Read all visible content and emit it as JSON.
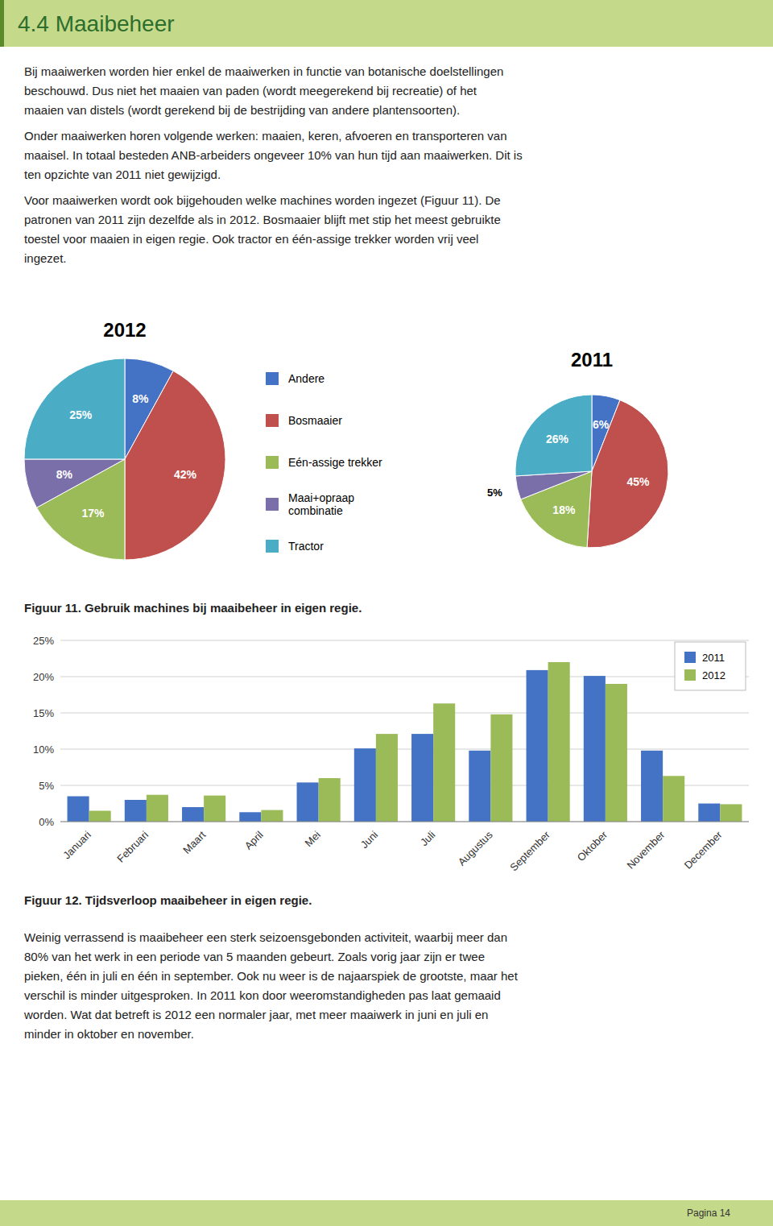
{
  "page": {
    "title": "4.4 Maaibeheer",
    "body_paragraphs": [
      [
        "Bij maaiwerken worden hier enkel de maaiwerken in functie van botanische doelstellingen",
        "beschouwd. Dus niet het maaien van paden (wordt meegerekend bij recreatie) of het",
        "maaien van distels (wordt gerekend bij de bestrijding van andere plantensoorten)."
      ],
      [
        "Onder maaiwerken horen volgende werken: maaien, keren, afvoeren en transporteren van",
        "maaisel. In totaal besteden ANB-arbeiders ongeveer 10% van hun tijd aan maaiwerken. Dit is",
        "ten opzichte van 2011 niet gewijzigd."
      ],
      [
        "Voor maaiwerken wordt ook bijgehouden welke machines worden ingezet (Figuur 11). De",
        "patronen van 2011 zijn dezelfde als in 2012. Bosmaaier blijft met stip het meest gebruikte",
        "toestel voor maaien in eigen regie. Ook tractor en één-assige trekker worden vrij veel",
        "ingezet."
      ]
    ],
    "bottom_text": [
      "Weinig verrassend is maaibeheer een sterk seizoensgebonden activiteit, waarbij meer dan",
      "80% van het werk in een periode van 5 maanden gebeurt. Zoals vorig jaar zijn er twee",
      "pieken, één in juli en één in september. Ook nu weer is de najaarspiek de grootste, maar het",
      "verschil is minder uitgesproken. In 2011 kon door weeromstandigheden pas laat gemaaid",
      "worden. Wat dat betreft is 2012 een normaler jaar, met meer maaiwerk in juni en juli en",
      "minder in oktober en november."
    ],
    "page_number": "Pagina 14"
  },
  "chart_data": [
    {
      "type": "pie",
      "title": "Figuur 11. Gebruik machines bij maaibeheer in eigen regie.",
      "categories": [
        "Andere",
        "Bosmaaier",
        "Eén-assige trekker",
        "Maai+opraap\ncombinatie",
        "Tractor"
      ],
      "colors": [
        "#4472c4",
        "#c0504d",
        "#9bbb59",
        "#7b6faa",
        "#4bacc6"
      ],
      "series": [
        {
          "name": "2012",
          "values": [
            8,
            42,
            17,
            8,
            25
          ],
          "value_labels": [
            "8%",
            "42%",
            "17%",
            "8%",
            "25%"
          ]
        },
        {
          "name": "2011",
          "values": [
            6,
            45,
            18,
            5,
            26
          ],
          "value_labels": [
            "6%",
            "45%",
            "18%",
            "5%",
            "26%"
          ]
        }
      ],
      "data_labels": true,
      "legend": "center"
    },
    {
      "type": "bar",
      "title": "Figuur 12. Tijdsverloop maaibeheer in eigen regie.",
      "categories": [
        "Januari",
        "Februari",
        "Maart",
        "April",
        "Mei",
        "Juni",
        "Juli",
        "Augustus",
        "September",
        "Oktober",
        "November",
        "December"
      ],
      "series": [
        {
          "name": "2011",
          "color": "#4472c4",
          "values": [
            3.5,
            3.0,
            2.0,
            1.3,
            5.4,
            10.1,
            12.1,
            9.8,
            20.9,
            20.1,
            9.8,
            2.5
          ]
        },
        {
          "name": "2012",
          "color": "#9bbb59",
          "values": [
            1.5,
            3.7,
            3.6,
            1.6,
            6.0,
            12.1,
            16.3,
            14.8,
            22.0,
            19.0,
            6.3,
            2.4
          ]
        }
      ],
      "ylim": [
        0,
        25
      ],
      "yticks": [
        {
          "value": 0,
          "label": "0%"
        },
        {
          "value": 5,
          "label": "5%"
        },
        {
          "value": 10,
          "label": "10%"
        },
        {
          "value": 15,
          "label": "15%"
        },
        {
          "value": 20,
          "label": "20%"
        },
        {
          "value": 25,
          "label": "25%"
        }
      ],
      "grid": true,
      "legend": "upper right"
    }
  ]
}
